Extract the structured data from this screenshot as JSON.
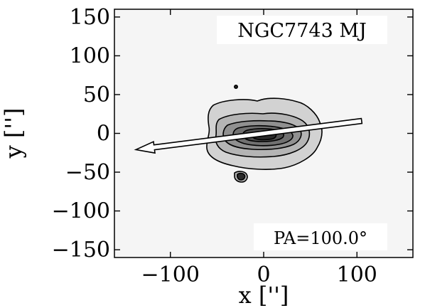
{
  "chart_data": {
    "type": "contour",
    "title": "NGC7743 MJ",
    "xlabel": "x ['']",
    "ylabel": "y ['']",
    "xlim": [
      -160,
      160
    ],
    "ylim": [
      -160,
      160
    ],
    "xticks": [
      -100,
      0,
      100
    ],
    "yticks": [
      -150,
      -100,
      -50,
      0,
      50,
      100,
      150
    ],
    "x_tick_labels": [
      "−100",
      "0",
      "100"
    ],
    "y_tick_labels": [
      "−150",
      "−100",
      "−50",
      "0",
      "50",
      "100",
      "150"
    ],
    "grid": false,
    "background_color": "#f5f5f5",
    "contour_fill_colors": [
      "#f5f5f5",
      "#d2d2d2",
      "#b4b4b4",
      "#909090",
      "#707070",
      "#505050",
      "#2a2a2a"
    ],
    "annotation": "PA=100.0°",
    "position_angle_deg": 100.0,
    "arrow": {
      "start": [
        105,
        16
      ],
      "end": [
        -137,
        -21
      ]
    }
  }
}
